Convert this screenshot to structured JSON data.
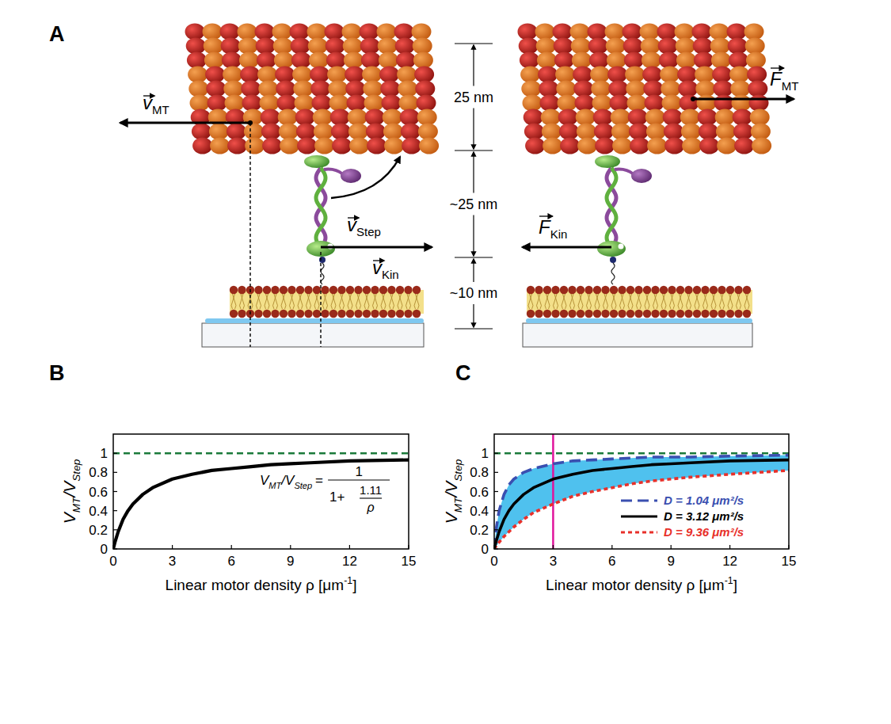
{
  "diagram": {
    "panel_label": "A",
    "labels": {
      "v_mt": {
        "base": "v",
        "sub": "MT"
      },
      "v_step": {
        "base": "v",
        "sub": "Step"
      },
      "v_kin": {
        "base": "v",
        "sub": "Kin"
      },
      "f_mt": {
        "base": "F",
        "sub": "MT"
      },
      "f_kin": {
        "base": "F",
        "sub": "Kin"
      }
    },
    "dimensions": [
      "25 nm",
      "~25 nm",
      "~10 nm"
    ]
  },
  "chart_data": [
    {
      "type": "line",
      "panel_label": "B",
      "xlabel": [
        {
          "base": "Linear motor density ρ [μm",
          "sup": "-1"
        },
        {
          "base": "]"
        }
      ],
      "ylabel": [
        {
          "base": "V",
          "sub": "MT"
        },
        {
          "base": "/"
        },
        {
          "base": "V",
          "sub": "Step"
        }
      ],
      "xlim": [
        0,
        15
      ],
      "ylim": [
        0,
        1.2
      ],
      "xticks": [
        0,
        3,
        6,
        9,
        12,
        15
      ],
      "yticks": [
        0,
        0.2,
        0.4,
        0.6,
        0.8,
        1
      ],
      "x": [
        0,
        0.1,
        0.25,
        0.5,
        0.75,
        1,
        1.5,
        2,
        3,
        4,
        5,
        6,
        7,
        8,
        9,
        10,
        12,
        15
      ],
      "series": [
        {
          "color": "#000000",
          "line_style": "solid",
          "values": [
            0,
            0.08,
            0.18,
            0.31,
            0.4,
            0.47,
            0.57,
            0.64,
            0.73,
            0.78,
            0.82,
            0.84,
            0.86,
            0.88,
            0.89,
            0.9,
            0.92,
            0.93
          ]
        }
      ],
      "reference_lines": [
        {
          "axis": "y",
          "value": 1,
          "color": "#1a7a3a",
          "line_style": "dashed"
        }
      ],
      "equation": {
        "lhs": [
          {
            "base": "V",
            "sub": "MT"
          },
          {
            "base": "/"
          },
          {
            "base": "V",
            "sub": "Step"
          }
        ],
        "equals": "=",
        "numerator": "1",
        "denominator": "1+",
        "inner_numerator": "1.11",
        "inner_denominator": "ρ"
      }
    },
    {
      "type": "line",
      "panel_label": "C",
      "xlabel": [
        {
          "base": "Linear motor density ρ [μm",
          "sup": "-1"
        },
        {
          "base": "]"
        }
      ],
      "ylabel": [
        {
          "base": "V",
          "sub": "MT"
        },
        {
          "base": "/"
        },
        {
          "base": "V",
          "sub": "Step"
        }
      ],
      "xlim": [
        0,
        15
      ],
      "ylim": [
        0,
        1.2
      ],
      "xticks": [
        0,
        3,
        6,
        9,
        12,
        15
      ],
      "yticks": [
        0,
        0.2,
        0.4,
        0.6,
        0.8,
        1
      ],
      "x": [
        0,
        0.1,
        0.25,
        0.5,
        0.75,
        1,
        1.5,
        2,
        3,
        4,
        5,
        6,
        7,
        8,
        9,
        10,
        12,
        15
      ],
      "series": [
        {
          "name": "D = 1.04 μm²/s",
          "color": "#3a4fb0",
          "line_style": "dashed",
          "values": [
            0,
            0.21,
            0.4,
            0.57,
            0.67,
            0.73,
            0.8,
            0.84,
            0.89,
            0.92,
            0.93,
            0.94,
            0.95,
            0.96,
            0.96,
            0.96,
            0.97,
            0.98
          ]
        },
        {
          "name": "D = 3.12 μm²/s",
          "color": "#000000",
          "line_style": "solid",
          "values": [
            0,
            0.08,
            0.18,
            0.31,
            0.4,
            0.47,
            0.57,
            0.64,
            0.73,
            0.78,
            0.82,
            0.84,
            0.86,
            0.88,
            0.89,
            0.9,
            0.92,
            0.93
          ]
        },
        {
          "name": "D = 9.36 μm²/s",
          "color": "#e8302a",
          "line_style": "dotted",
          "values": [
            0,
            0.03,
            0.07,
            0.13,
            0.18,
            0.23,
            0.31,
            0.38,
            0.47,
            0.55,
            0.6,
            0.64,
            0.68,
            0.71,
            0.73,
            0.75,
            0.78,
            0.82
          ]
        }
      ],
      "legend": "bottom-right",
      "reference_lines": [
        {
          "axis": "y",
          "value": 1,
          "color": "#1a7a3a",
          "line_style": "dashed"
        },
        {
          "axis": "x",
          "value": 3,
          "color": "#e0149b",
          "line_style": "solid"
        }
      ]
    }
  ]
}
